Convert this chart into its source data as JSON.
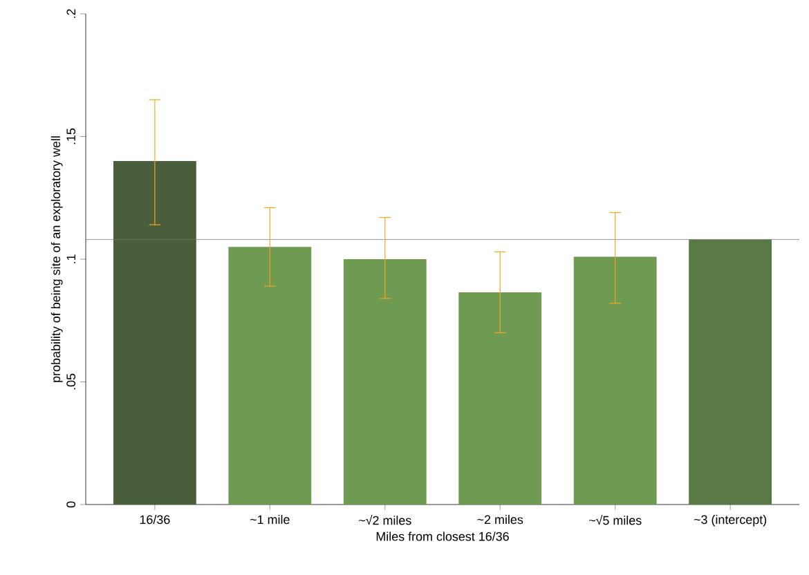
{
  "chart_data": {
    "type": "bar",
    "xlabel": "Miles from closest 16/36",
    "ylabel": "probability of being site of an exploratory well",
    "categories": [
      "16/36",
      "~1 mile",
      "~√2 miles",
      "~2 miles",
      "~√5 miles",
      "~3 (intercept)"
    ],
    "values": [
      0.14,
      0.105,
      0.1,
      0.0865,
      0.101,
      0.108
    ],
    "colors": [
      "#4b5e3b",
      "#6f9a52",
      "#6f9a52",
      "#6f9a52",
      "#6f9a52",
      "#5a7a45"
    ],
    "errors": [
      [
        0.114,
        0.165
      ],
      [
        0.089,
        0.121
      ],
      [
        0.084,
        0.117
      ],
      [
        0.07,
        0.103
      ],
      [
        0.082,
        0.119
      ],
      null
    ],
    "ylim": [
      0,
      0.2
    ],
    "yticks": [
      0,
      {
        "value": 0.05,
        "label": ".05"
      },
      {
        "value": 0.1,
        "label": ".1"
      },
      {
        "value": 0.15,
        "label": ".15"
      },
      {
        "value": 0.2,
        "label": ".2"
      }
    ],
    "ref_lines": [
      {
        "axis": "y",
        "value": 0.108,
        "color": "#777777"
      }
    ],
    "grid": false
  }
}
